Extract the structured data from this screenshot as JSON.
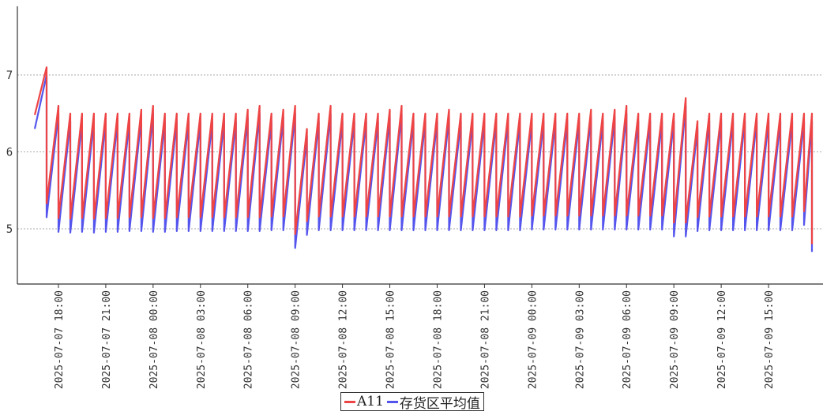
{
  "chart_data": {
    "type": "line",
    "title": "",
    "xlabel": "",
    "ylabel": "",
    "ylim": [
      4.3,
      7.9
    ],
    "yticks": [
      5,
      6,
      7
    ],
    "ytick_labels": [
      "5",
      "6",
      "7"
    ],
    "grid": "horizontal dotted",
    "legend_position": "bottom-center",
    "x_start": "2025-07-07 16:30",
    "x_end": "2025-07-09 17:45",
    "xtick_labels": [
      "2025-07-07 18:00",
      "2025-07-07 21:00",
      "2025-07-08 00:00",
      "2025-07-08 03:00",
      "2025-07-08 06:00",
      "2025-07-08 09:00",
      "2025-07-08 12:00",
      "2025-07-08 15:00",
      "2025-07-08 18:00",
      "2025-07-08 21:00",
      "2025-07-09 00:00",
      "2025-07-09 03:00",
      "2025-07-09 06:00",
      "2025-07-09 09:00",
      "2025-07-09 12:00",
      "2025-07-09 15:00"
    ],
    "cycle_hours": 0.75,
    "series": [
      {
        "name": "存货区平均值",
        "color": "#5555ee",
        "x": [
          "2025-07-07 16:30",
          "2025-07-07 17:15",
          "2025-07-07 18:00",
          "2025-07-07 18:45",
          "2025-07-07 19:30",
          "2025-07-07 20:15",
          "2025-07-07 21:00",
          "2025-07-07 21:45",
          "2025-07-07 22:30",
          "2025-07-07 23:15",
          "2025-07-08 00:00",
          "2025-07-08 00:45",
          "2025-07-08 01:30",
          "2025-07-08 02:15",
          "2025-07-08 03:00",
          "2025-07-08 03:45",
          "2025-07-08 04:30",
          "2025-07-08 05:15",
          "2025-07-08 06:00",
          "2025-07-08 06:45",
          "2025-07-08 07:30",
          "2025-07-08 08:15",
          "2025-07-08 09:00",
          "2025-07-08 09:45",
          "2025-07-08 10:30",
          "2025-07-08 11:15",
          "2025-07-08 12:00",
          "2025-07-08 12:45",
          "2025-07-08 13:30",
          "2025-07-08 14:15",
          "2025-07-08 15:00",
          "2025-07-08 15:45",
          "2025-07-08 16:30",
          "2025-07-08 17:15",
          "2025-07-08 18:00",
          "2025-07-08 18:45",
          "2025-07-08 19:30",
          "2025-07-08 20:15",
          "2025-07-08 21:00",
          "2025-07-08 21:45",
          "2025-07-08 22:30",
          "2025-07-08 23:15",
          "2025-07-09 00:00",
          "2025-07-09 00:45",
          "2025-07-09 01:30",
          "2025-07-09 02:15",
          "2025-07-09 03:00",
          "2025-07-09 03:45",
          "2025-07-09 04:30",
          "2025-07-09 05:15",
          "2025-07-09 06:00",
          "2025-07-09 06:45",
          "2025-07-09 07:30",
          "2025-07-09 08:15",
          "2025-07-09 09:00",
          "2025-07-09 09:45",
          "2025-07-09 10:30",
          "2025-07-09 11:15",
          "2025-07-09 12:00",
          "2025-07-09 12:45",
          "2025-07-09 13:30",
          "2025-07-09 14:15",
          "2025-07-09 15:00",
          "2025-07-09 15:45",
          "2025-07-09 16:30",
          "2025-07-09 17:15",
          "2025-07-09 17:45"
        ],
        "y": [
          6.3,
          5.15,
          4.96,
          4.95,
          4.96,
          4.95,
          4.96,
          4.96,
          4.97,
          4.97,
          4.96,
          4.96,
          4.97,
          4.97,
          4.97,
          4.97,
          4.97,
          4.97,
          4.97,
          4.97,
          4.98,
          4.98,
          4.75,
          4.92,
          4.98,
          4.98,
          4.98,
          4.98,
          4.98,
          4.98,
          4.98,
          4.98,
          4.98,
          4.98,
          4.98,
          4.98,
          4.98,
          4.98,
          4.98,
          4.98,
          4.98,
          4.98,
          4.99,
          4.99,
          4.99,
          4.99,
          4.99,
          4.99,
          4.99,
          4.99,
          4.99,
          4.99,
          4.99,
          4.99,
          4.9,
          4.9,
          4.97,
          4.98,
          4.98,
          4.98,
          4.98,
          4.98,
          4.98,
          4.98,
          4.98,
          5.05,
          4.82
        ]
      },
      {
        "name": "A11",
        "color": "#ee4444",
        "x": [
          "2025-07-07 16:30",
          "2025-07-07 17:15",
          "2025-07-07 18:00",
          "2025-07-07 18:45",
          "2025-07-07 19:30",
          "2025-07-07 20:15",
          "2025-07-07 21:00",
          "2025-07-07 21:45",
          "2025-07-07 22:30",
          "2025-07-07 23:15",
          "2025-07-08 00:00",
          "2025-07-08 00:45",
          "2025-07-08 01:30",
          "2025-07-08 02:15",
          "2025-07-08 03:00",
          "2025-07-08 03:45",
          "2025-07-08 04:30",
          "2025-07-08 05:15",
          "2025-07-08 06:00",
          "2025-07-08 06:45",
          "2025-07-08 07:30",
          "2025-07-08 08:15",
          "2025-07-08 09:00",
          "2025-07-08 09:45",
          "2025-07-08 10:30",
          "2025-07-08 11:15",
          "2025-07-08 12:00",
          "2025-07-08 12:45",
          "2025-07-08 13:30",
          "2025-07-08 14:15",
          "2025-07-08 15:00",
          "2025-07-08 15:45",
          "2025-07-08 16:30",
          "2025-07-08 17:15",
          "2025-07-08 18:00",
          "2025-07-08 18:45",
          "2025-07-08 19:30",
          "2025-07-08 20:15",
          "2025-07-08 21:00",
          "2025-07-08 21:45",
          "2025-07-08 22:30",
          "2025-07-08 23:15",
          "2025-07-09 00:00",
          "2025-07-09 00:45",
          "2025-07-09 01:30",
          "2025-07-09 02:15",
          "2025-07-09 03:00",
          "2025-07-09 03:45",
          "2025-07-09 04:30",
          "2025-07-09 05:15",
          "2025-07-09 06:00",
          "2025-07-09 06:45",
          "2025-07-09 07:30",
          "2025-07-09 08:15",
          "2025-07-09 09:00",
          "2025-07-09 09:45",
          "2025-07-09 10:30",
          "2025-07-09 11:15",
          "2025-07-09 12:00",
          "2025-07-09 12:45",
          "2025-07-09 13:30",
          "2025-07-09 14:15",
          "2025-07-09 15:00",
          "2025-07-09 15:45",
          "2025-07-09 16:30",
          "2025-07-09 17:15",
          "2025-07-09 17:45"
        ],
        "y": [
          7.1,
          6.6,
          6.5,
          6.5,
          6.5,
          6.5,
          6.5,
          6.5,
          6.55,
          6.6,
          6.5,
          6.5,
          6.5,
          6.5,
          6.5,
          6.5,
          6.5,
          6.55,
          6.6,
          6.5,
          6.55,
          6.6,
          6.3,
          6.5,
          6.6,
          6.5,
          6.5,
          6.5,
          6.5,
          6.55,
          6.6,
          6.5,
          6.5,
          6.5,
          6.55,
          6.5,
          6.5,
          6.5,
          6.5,
          6.5,
          6.5,
          6.5,
          6.5,
          6.5,
          6.5,
          6.5,
          6.55,
          6.5,
          6.55,
          6.6,
          6.5,
          6.5,
          6.5,
          6.5,
          6.7,
          6.4,
          6.5,
          6.5,
          6.5,
          6.5,
          6.5,
          6.5,
          6.5,
          6.5,
          6.5,
          6.5,
          4.8
        ]
      }
    ]
  },
  "legend": [
    {
      "label": "A11",
      "color": "#ee4444"
    },
    {
      "label": "存货区平均值",
      "color": "#5555ee"
    }
  ]
}
